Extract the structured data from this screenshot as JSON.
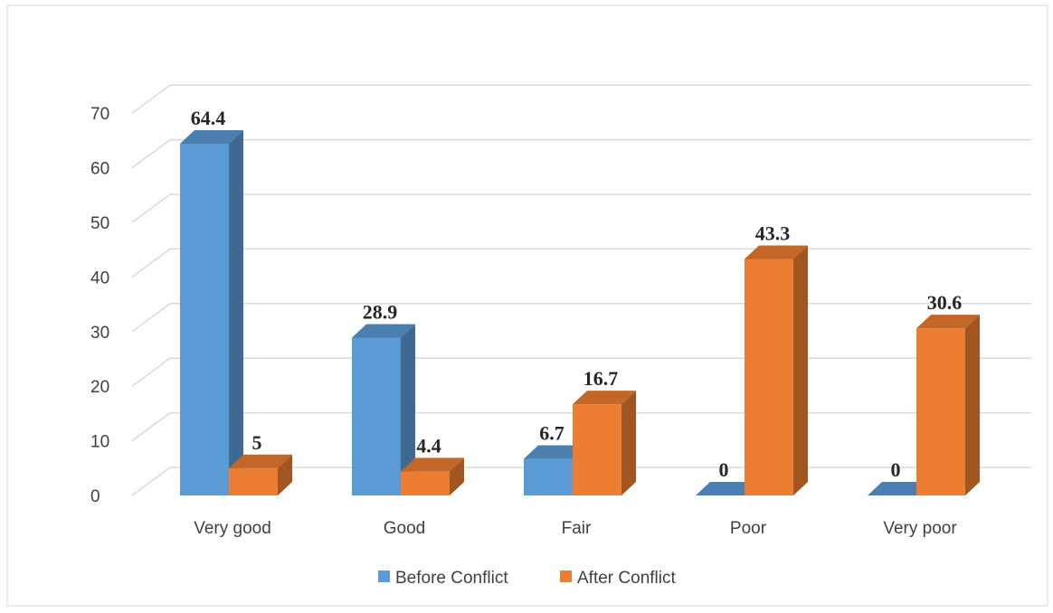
{
  "chart_data": {
    "type": "bar",
    "style": "3d-clustered-column",
    "categories": [
      "Very good",
      "Good",
      "Fair",
      "Poor",
      "Very poor"
    ],
    "series": [
      {
        "name": "Before Conflict",
        "values": [
          64.4,
          28.9,
          6.7,
          0,
          0
        ],
        "color": "#5B9BD5"
      },
      {
        "name": "After Conflict",
        "values": [
          5,
          4.4,
          16.7,
          43.3,
          30.6
        ],
        "color": "#ED7D31"
      }
    ],
    "data_labels": [
      [
        "64.4",
        "28.9",
        "6.7",
        "0",
        "0"
      ],
      [
        "5",
        "4.4",
        "16.7",
        "43.3",
        "30.6"
      ]
    ],
    "ylim": [
      0,
      70
    ],
    "yticks": [
      "0",
      "10",
      "20",
      "30",
      "40",
      "50",
      "60",
      "70"
    ],
    "grid": true,
    "legend": "bottom"
  }
}
